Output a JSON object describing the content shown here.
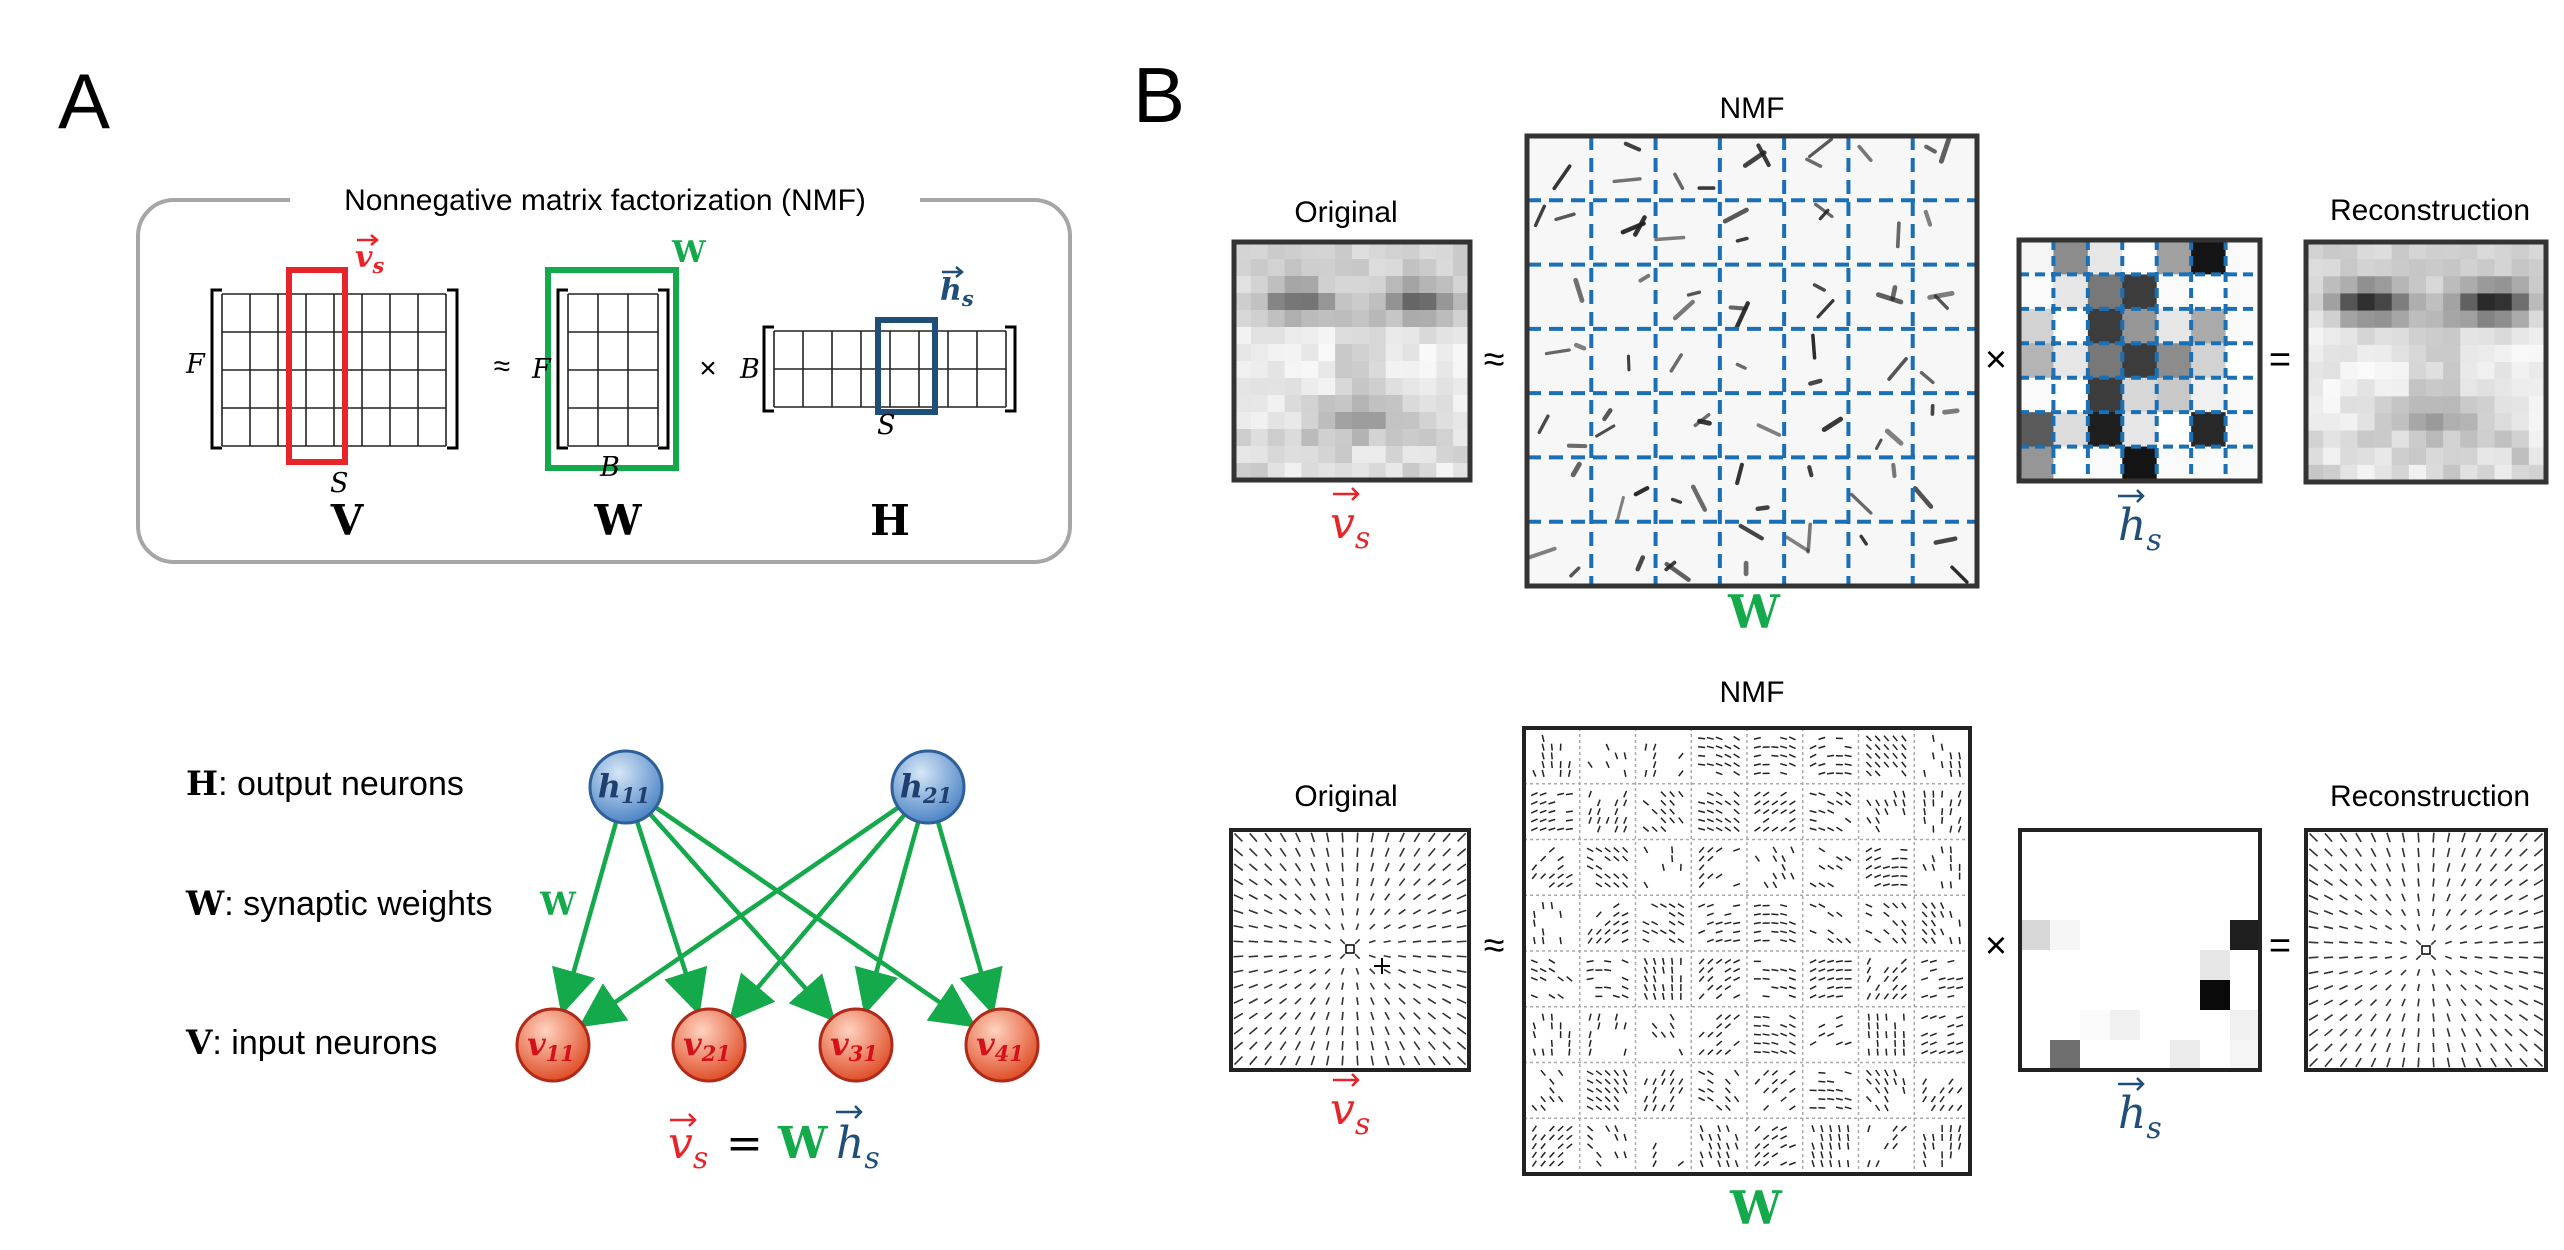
{
  "panel_a": {
    "letter": "A",
    "nmf_title": "Nonnegative matrix factorization (NMF)",
    "approx": "≈",
    "times": "×",
    "V": {
      "name": "V",
      "rows_label": "F",
      "cols_label": "S",
      "highlight_label": "v",
      "highlight_sub": "s"
    },
    "W": {
      "name": "W",
      "rows_label": "F",
      "cols_label": "B",
      "highlight_label": "W"
    },
    "H": {
      "name": "H",
      "rows_label": "B",
      "cols_label": "S",
      "highlight_label": "h",
      "highlight_sub": "s"
    },
    "network": {
      "h_label": {
        "bold": "H",
        "text": ": output neurons"
      },
      "w_label": {
        "bold": "W",
        "text": ": synaptic weights"
      },
      "w_tag": "W",
      "v_label": {
        "bold": "V",
        "text": ": input neurons"
      },
      "output_nodes": [
        {
          "base": "h",
          "sub": "11"
        },
        {
          "base": "h",
          "sub": "21"
        }
      ],
      "input_nodes": [
        {
          "base": "v",
          "sub": "11"
        },
        {
          "base": "v",
          "sub": "21"
        },
        {
          "base": "v",
          "sub": "31"
        },
        {
          "base": "v",
          "sub": "41"
        }
      ],
      "equation": {
        "v": "v",
        "v_sub": "s",
        "eq": "=",
        "w": "W",
        "h": "h",
        "h_sub": "s"
      }
    }
  },
  "panel_b": {
    "letter": "B",
    "rows": [
      {
        "original_title": "Original",
        "nmf_title": "NMF",
        "reconstruction_title": "Reconstruction",
        "approx": "≈",
        "times": "×",
        "equals": "=",
        "v_label": "v",
        "v_sub": "s",
        "w_label": "W",
        "h_label": "h",
        "h_sub": "s"
      },
      {
        "original_title": "Original",
        "nmf_title": "NMF",
        "reconstruction_title": "Reconstruction",
        "approx": "≈",
        "times": "×",
        "equals": "=",
        "v_label": "v",
        "v_sub": "s",
        "w_label": "W",
        "h_label": "h",
        "h_sub": "s"
      }
    ]
  },
  "colors": {
    "red": "#e8242b",
    "green": "#14a94a",
    "blue": "#1f4e79",
    "dash_blue": "#1a6fb5",
    "node_blue": "#6ea0d8",
    "node_red": "#f08060",
    "gray_border": "#a6a6a6"
  }
}
